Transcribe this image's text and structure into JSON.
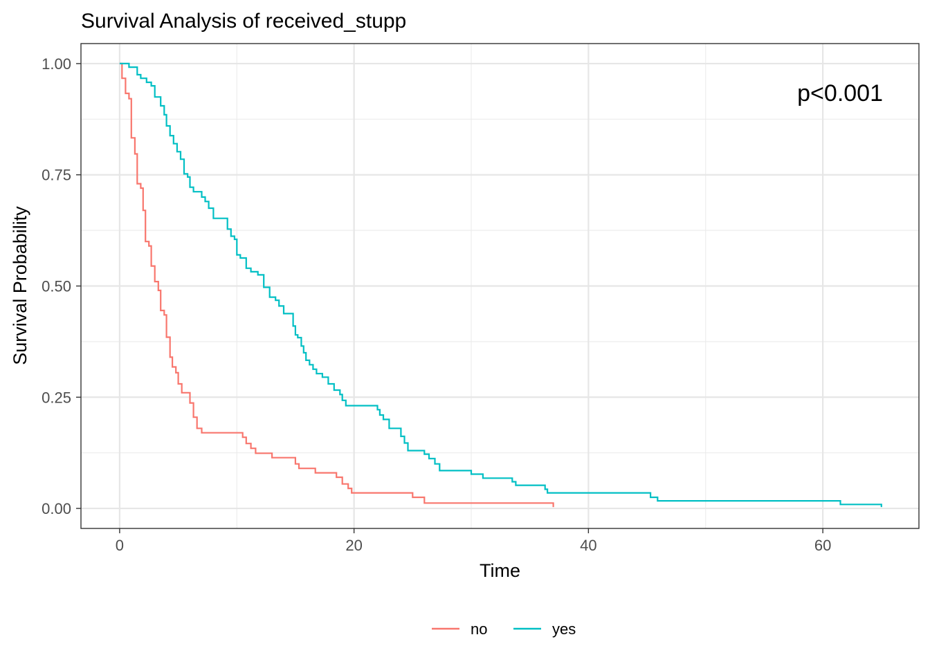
{
  "chart_data": {
    "type": "line",
    "subtype": "kaplan-meier step",
    "title": "Survival Analysis of received_stupp",
    "xlabel": "Time",
    "ylabel": "Survival Probability",
    "xlim": [
      -3.3,
      68.2
    ],
    "ylim": [
      -0.045,
      1.045
    ],
    "xticks": [
      0,
      20,
      40,
      60
    ],
    "xtick_labels": [
      "0",
      "20",
      "40",
      "60"
    ],
    "yticks": [
      0,
      0.25,
      0.5,
      0.75,
      1.0
    ],
    "ytick_labels": [
      "0.00",
      "0.25",
      "0.50",
      "0.75",
      "1.00"
    ],
    "grid": true,
    "legend_position": "bottom",
    "annotation": "p<0.001",
    "series": [
      {
        "name": "no",
        "color": "#F8766D",
        "points": [
          [
            0,
            1.0
          ],
          [
            0.2,
            0.967
          ],
          [
            0.5,
            0.933
          ],
          [
            0.8,
            0.921
          ],
          [
            1.0,
            0.833
          ],
          [
            1.3,
            0.797
          ],
          [
            1.5,
            0.73
          ],
          [
            1.8,
            0.72
          ],
          [
            2.0,
            0.67
          ],
          [
            2.2,
            0.6
          ],
          [
            2.5,
            0.59
          ],
          [
            2.7,
            0.545
          ],
          [
            3.0,
            0.51
          ],
          [
            3.3,
            0.49
          ],
          [
            3.5,
            0.445
          ],
          [
            3.8,
            0.435
          ],
          [
            4.0,
            0.385
          ],
          [
            4.3,
            0.34
          ],
          [
            4.5,
            0.318
          ],
          [
            4.8,
            0.305
          ],
          [
            5.0,
            0.28
          ],
          [
            5.3,
            0.26
          ],
          [
            6.0,
            0.237
          ],
          [
            6.3,
            0.205
          ],
          [
            6.6,
            0.18
          ],
          [
            7.0,
            0.17
          ],
          [
            10.5,
            0.16
          ],
          [
            10.8,
            0.146
          ],
          [
            11.2,
            0.135
          ],
          [
            11.6,
            0.124
          ],
          [
            13.0,
            0.114
          ],
          [
            15.0,
            0.1
          ],
          [
            15.3,
            0.09
          ],
          [
            16.7,
            0.08
          ],
          [
            18.5,
            0.07
          ],
          [
            19.0,
            0.055
          ],
          [
            19.5,
            0.045
          ],
          [
            19.8,
            0.035
          ],
          [
            25.0,
            0.025
          ],
          [
            26.0,
            0.012
          ],
          [
            37.0,
            0.003
          ]
        ]
      },
      {
        "name": "yes",
        "color": "#00BFC4",
        "points": [
          [
            0,
            1.0
          ],
          [
            0.8,
            0.992
          ],
          [
            1.5,
            0.975
          ],
          [
            1.8,
            0.967
          ],
          [
            2.3,
            0.958
          ],
          [
            2.7,
            0.95
          ],
          [
            3.0,
            0.925
          ],
          [
            3.5,
            0.905
          ],
          [
            3.8,
            0.885
          ],
          [
            4.0,
            0.86
          ],
          [
            4.3,
            0.838
          ],
          [
            4.6,
            0.82
          ],
          [
            4.9,
            0.802
          ],
          [
            5.2,
            0.785
          ],
          [
            5.5,
            0.752
          ],
          [
            5.8,
            0.745
          ],
          [
            6.0,
            0.722
          ],
          [
            6.3,
            0.712
          ],
          [
            7.0,
            0.7
          ],
          [
            7.3,
            0.69
          ],
          [
            7.6,
            0.675
          ],
          [
            8.0,
            0.652
          ],
          [
            9.2,
            0.628
          ],
          [
            9.5,
            0.612
          ],
          [
            9.8,
            0.605
          ],
          [
            10.0,
            0.57
          ],
          [
            10.3,
            0.563
          ],
          [
            10.8,
            0.54
          ],
          [
            11.2,
            0.532
          ],
          [
            11.8,
            0.525
          ],
          [
            12.3,
            0.497
          ],
          [
            12.8,
            0.475
          ],
          [
            13.3,
            0.468
          ],
          [
            13.6,
            0.455
          ],
          [
            14.0,
            0.438
          ],
          [
            14.8,
            0.41
          ],
          [
            15.0,
            0.39
          ],
          [
            15.2,
            0.384
          ],
          [
            15.5,
            0.365
          ],
          [
            15.7,
            0.35
          ],
          [
            15.9,
            0.333
          ],
          [
            16.2,
            0.323
          ],
          [
            16.5,
            0.313
          ],
          [
            16.8,
            0.303
          ],
          [
            17.3,
            0.295
          ],
          [
            17.8,
            0.28
          ],
          [
            18.3,
            0.266
          ],
          [
            18.8,
            0.256
          ],
          [
            19.0,
            0.243
          ],
          [
            19.3,
            0.231
          ],
          [
            22.0,
            0.222
          ],
          [
            22.2,
            0.21
          ],
          [
            22.5,
            0.2
          ],
          [
            23.0,
            0.18
          ],
          [
            24.0,
            0.162
          ],
          [
            24.3,
            0.147
          ],
          [
            24.6,
            0.13
          ],
          [
            26.0,
            0.122
          ],
          [
            26.4,
            0.112
          ],
          [
            26.9,
            0.1
          ],
          [
            27.3,
            0.085
          ],
          [
            30.0,
            0.077
          ],
          [
            31.0,
            0.068
          ],
          [
            33.5,
            0.06
          ],
          [
            33.8,
            0.052
          ],
          [
            36.3,
            0.043
          ],
          [
            36.5,
            0.035
          ],
          [
            45.3,
            0.025
          ],
          [
            45.9,
            0.017
          ],
          [
            61.5,
            0.009
          ],
          [
            65.0,
            0.003
          ]
        ]
      }
    ]
  }
}
